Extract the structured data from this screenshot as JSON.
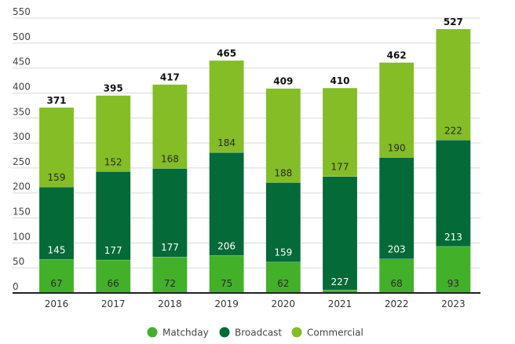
{
  "chart_data": {
    "type": "bar",
    "stacked": true,
    "title": "",
    "xlabel": "",
    "ylabel": "",
    "categories": [
      "2016",
      "2017",
      "2018",
      "2019",
      "2020",
      "2021",
      "2022",
      "2023"
    ],
    "series": [
      {
        "name": "Matchday",
        "color": "#43b02a",
        "label_color": "#2b2b2b",
        "values": [
          67,
          66,
          72,
          75,
          62,
          6,
          68,
          93
        ],
        "labels": [
          "67",
          "66",
          "72",
          "75",
          "62",
          "",
          "68",
          "93"
        ]
      },
      {
        "name": "Broadcast",
        "color": "#046a38",
        "label_color": "#ffffff",
        "values": [
          145,
          177,
          177,
          206,
          159,
          227,
          203,
          213
        ],
        "labels": [
          "145",
          "177",
          "177",
          "206",
          "159",
          "227",
          "203",
          "213"
        ]
      },
      {
        "name": "Commercial",
        "color": "#84bd26",
        "label_color": "#2b2b2b",
        "values": [
          159,
          152,
          168,
          184,
          188,
          177,
          190,
          222
        ],
        "labels": [
          "159",
          "152",
          "168",
          "184",
          "188",
          "177",
          "190",
          "222"
        ]
      }
    ],
    "totals": [
      "371",
      "395",
      "417",
      "465",
      "409",
      "410",
      "462",
      "527"
    ],
    "ylim": [
      0,
      550
    ],
    "yticks": [
      "0",
      "50",
      "100",
      "150",
      "200",
      "250",
      "300",
      "350",
      "400",
      "450",
      "500",
      "550"
    ],
    "grid": true,
    "legend": {
      "position": "bottom-center",
      "entries": [
        "Matchday",
        "Broadcast",
        "Commercial"
      ]
    }
  }
}
